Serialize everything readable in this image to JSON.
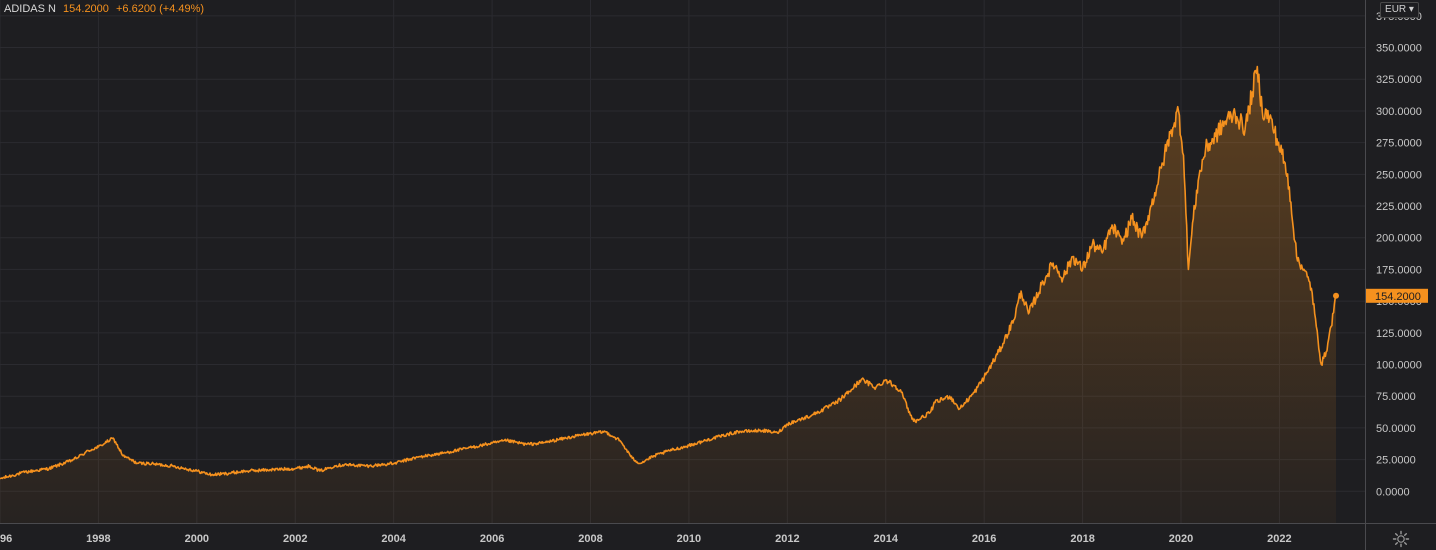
{
  "legend": {
    "symbol": "ADIDAS N",
    "price": "154.2000",
    "change": "+6.6200 (+4.49%)"
  },
  "currency": "EUR ▾",
  "last_price_label": "154.2000",
  "colors": {
    "background": "#1e1e21",
    "grid": "#2b2b30",
    "line": "#f5911e",
    "axis_text": "#c8c8c8"
  },
  "icons": {
    "settings": "gear-icon",
    "currency_dropdown": "chevron-down-icon"
  },
  "chart_data": {
    "type": "area",
    "title": "",
    "xlabel": "",
    "ylabel": "",
    "currency": "EUR",
    "ylim": [
      -25,
      387.5
    ],
    "xlim": [
      1996.0,
      2023.8
    ],
    "y_ticks": [
      "375.0000",
      "350.0000",
      "325.0000",
      "300.0000",
      "275.0000",
      "250.0000",
      "225.0000",
      "200.0000",
      "175.0000",
      "150.0000",
      "125.0000",
      "100.0000",
      "75.0000",
      "50.0000",
      "25.0000",
      "0.0000"
    ],
    "x_ticks": [
      "96",
      "1998",
      "2000",
      "2002",
      "2004",
      "2006",
      "2008",
      "2010",
      "2012",
      "2014",
      "2016",
      "2018",
      "2020",
      "2022"
    ],
    "grid": true,
    "series": [
      {
        "x": [
          1996.0,
          1996.5,
          1997.0,
          1997.5,
          1997.8,
          1998.0,
          1998.3,
          1998.5,
          1998.8,
          1999.0,
          1999.5,
          2000.0,
          2000.3,
          2000.6,
          2001.0,
          2001.5,
          2002.0,
          2002.3,
          2002.5,
          2002.8,
          2003.0,
          2003.5,
          2004.0,
          2004.5,
          2005.0,
          2005.5,
          2006.0,
          2006.3,
          2006.7,
          2007.0,
          2007.5,
          2007.9,
          2008.3,
          2008.6,
          2008.85,
          2009.0,
          2009.3,
          2009.6,
          2010.0,
          2010.5,
          2011.0,
          2011.5,
          2011.8,
          2012.0,
          2012.5,
          2013.0,
          2013.3,
          2013.5,
          2013.8,
          2014.0,
          2014.3,
          2014.5,
          2014.6,
          2014.9,
          2015.0,
          2015.3,
          2015.5,
          2015.8,
          2016.0,
          2016.3,
          2016.6,
          2016.75,
          2016.9,
          2017.2,
          2017.4,
          2017.6,
          2017.8,
          2018.0,
          2018.2,
          2018.4,
          2018.6,
          2018.8,
          2019.0,
          2019.2,
          2019.4,
          2019.6,
          2019.8,
          2019.95,
          2020.05,
          2020.15,
          2020.25,
          2020.35,
          2020.5,
          2020.7,
          2020.9,
          2021.1,
          2021.3,
          2021.45,
          2021.55,
          2021.65,
          2021.8,
          2021.95,
          2022.1,
          2022.2,
          2022.35,
          2022.5,
          2022.65,
          2022.75,
          2022.85,
          2022.95,
          2023.05,
          2023.15
        ],
        "y": [
          10,
          15,
          18,
          25,
          32,
          35,
          42,
          28,
          22,
          22,
          20,
          16,
          13,
          14,
          16,
          17,
          18,
          20,
          16,
          20,
          21,
          20,
          22,
          27,
          30,
          34,
          38,
          40,
          37,
          38,
          42,
          45,
          47,
          40,
          26,
          22,
          28,
          32,
          36,
          42,
          47,
          48,
          46,
          53,
          60,
          70,
          80,
          88,
          82,
          88,
          80,
          60,
          55,
          62,
          70,
          75,
          65,
          78,
          90,
          110,
          135,
          158,
          140,
          165,
          180,
          168,
          185,
          175,
          195,
          188,
          210,
          195,
          215,
          200,
          225,
          255,
          285,
          300,
          265,
          175,
          215,
          245,
          270,
          280,
          292,
          298,
          285,
          315,
          335,
          300,
          295,
          278,
          260,
          240,
          185,
          175,
          160,
          130,
          100,
          110,
          130,
          154.2
        ]
      }
    ]
  }
}
